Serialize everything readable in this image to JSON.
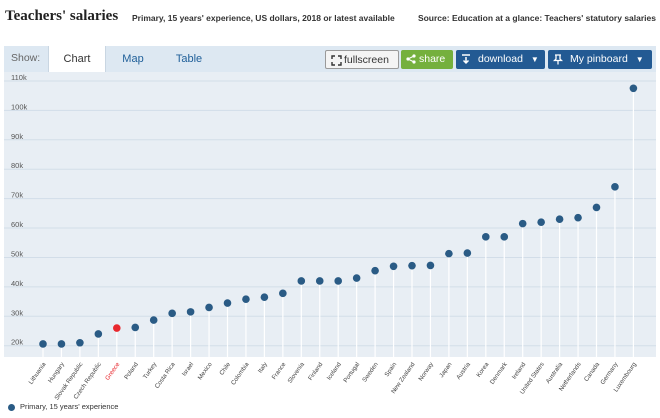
{
  "header": {
    "title": "Teachers' salaries",
    "subtitle": "Primary, 15 years' experience, US dollars, 2018 or latest available",
    "source": "Source: Education at a glance: Teachers' statutory salaries"
  },
  "toolbar": {
    "show_label": "Show:",
    "tabs": [
      {
        "label": "Chart",
        "active": true
      },
      {
        "label": "Map",
        "active": false
      },
      {
        "label": "Table",
        "active": false
      }
    ],
    "fullscreen_label": "fullscreen",
    "share_label": "share",
    "download_label": "download",
    "pinboard_label": "My pinboard"
  },
  "legend": {
    "label": "Primary, 15 years' experience"
  },
  "colors": {
    "point": "#2a5b85",
    "highlight": "#e8282e",
    "stem": "#ffffff",
    "plot_bg": "#e8eef4",
    "grid": "#d2dde8"
  },
  "chart_data": {
    "type": "scatter",
    "y_tick_labels": [
      "20k",
      "30k",
      "40k",
      "50k",
      "60k",
      "70k",
      "80k",
      "90k",
      "100k",
      "110k"
    ],
    "ylim": [
      16500,
      111000
    ],
    "highlight_category": "Greece",
    "categories": [
      "Lithuania",
      "Hungary",
      "Slovak Republic",
      "Czech Republic",
      "Greece",
      "Poland",
      "Turkey",
      "Costa Rica",
      "Israel",
      "Mexico",
      "Chile",
      "Colombia",
      "Italy",
      "France",
      "Slovenia",
      "Finland",
      "Iceland",
      "Portugal",
      "Sweden",
      "Spain",
      "New Zealand",
      "Norway",
      "Japan",
      "Austria",
      "Korea",
      "Denmark",
      "Ireland",
      "United States",
      "Australia",
      "Netherlands",
      "Canada",
      "Germany",
      "Luxembourg"
    ],
    "series": [
      {
        "name": "Primary, 15 years' experience",
        "values": [
          20600,
          20600,
          21000,
          24000,
          26000,
          26200,
          28700,
          31000,
          31500,
          33000,
          34500,
          35800,
          36500,
          37800,
          42000,
          42000,
          42000,
          43000,
          45500,
          47000,
          47200,
          47300,
          51300,
          51500,
          57000,
          57000,
          61500,
          62000,
          63000,
          63500,
          67000,
          74000,
          107500
        ]
      }
    ]
  }
}
